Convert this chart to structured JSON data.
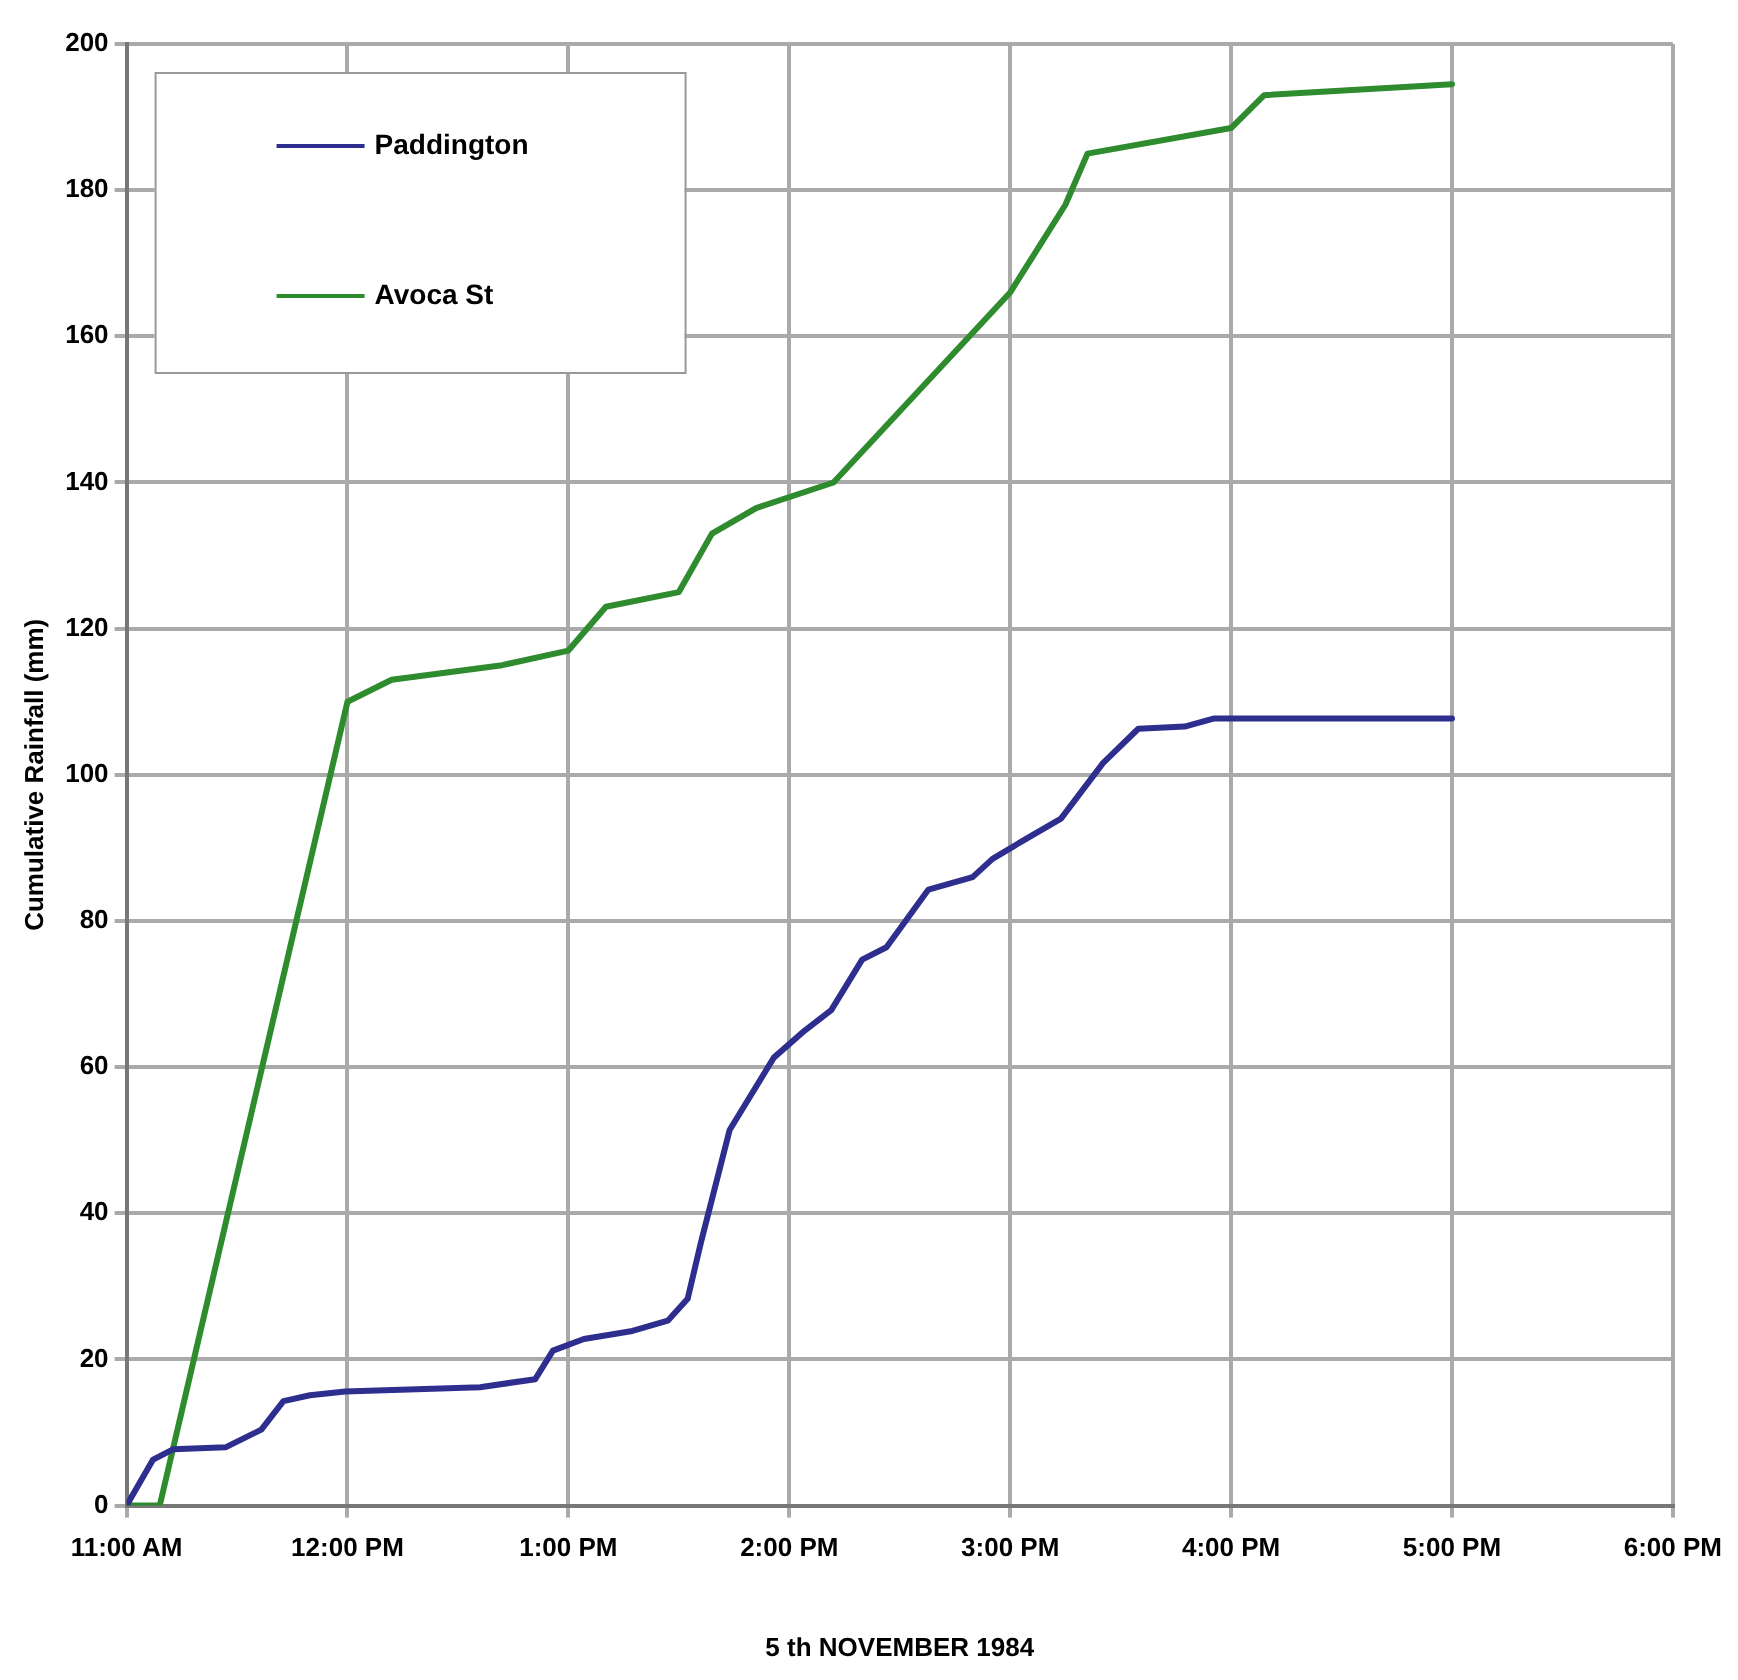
{
  "chart_data": {
    "type": "line",
    "xlabel": "5 th NOVEMBER 1984",
    "ylabel": "Cumulative Rainfall (mm)",
    "xlim": [
      11,
      18
    ],
    "xticks": [
      {
        "value": 11,
        "label": "11:00 AM"
      },
      {
        "value": 12,
        "label": "12:00 PM"
      },
      {
        "value": 13,
        "label": "1:00 PM"
      },
      {
        "value": 14,
        "label": "2:00 PM"
      },
      {
        "value": 15,
        "label": "3:00 PM"
      },
      {
        "value": 16,
        "label": "4:00 PM"
      },
      {
        "value": 17,
        "label": "5:00 PM"
      },
      {
        "value": 18,
        "label": "6:00 PM"
      }
    ],
    "ylim": [
      0,
      200
    ],
    "yticks": [
      0,
      20,
      40,
      60,
      80,
      100,
      120,
      140,
      160,
      180,
      200
    ],
    "grid": true,
    "legend": "top left",
    "marker": "none",
    "line_style": "solid",
    "series": [
      {
        "name": "Paddington",
        "color": "#2e2e8f",
        "x": [
          11,
          11.12,
          11.21,
          11.45,
          11.61,
          11.71,
          11.83,
          11.99,
          12.6,
          12.85,
          12.93,
          13.07,
          13.29,
          13.45,
          13.54,
          13.6,
          13.73,
          13.93,
          14.07,
          14.19,
          14.33,
          14.44,
          14.63,
          14.83,
          14.92,
          15.07,
          15.23,
          15.42,
          15.58,
          15.79,
          15.92,
          17
        ],
        "values": [
          0,
          6.3,
          7.7,
          8,
          10.4,
          14.3,
          15.1,
          15.6,
          16.2,
          17.3,
          21.2,
          22.8,
          23.9,
          25.3,
          28.3,
          36,
          51.4,
          61.3,
          65,
          67.8,
          74.7,
          76.4,
          84.3,
          86,
          88.5,
          91.2,
          94,
          101.6,
          106.3,
          106.6,
          107.7,
          107.7
        ]
      },
      {
        "name": "Avoca St",
        "color": "#2e8b2e",
        "x": [
          11,
          11.15,
          12,
          12.2,
          12.7,
          13,
          13.17,
          13.5,
          13.65,
          13.85,
          14.2,
          15,
          15.25,
          15.35,
          16,
          16.15,
          17
        ],
        "values": [
          0,
          0,
          110,
          113,
          115,
          117,
          123,
          125,
          133,
          136.5,
          140,
          166,
          178,
          185,
          188.5,
          193,
          194.5
        ]
      }
    ]
  }
}
